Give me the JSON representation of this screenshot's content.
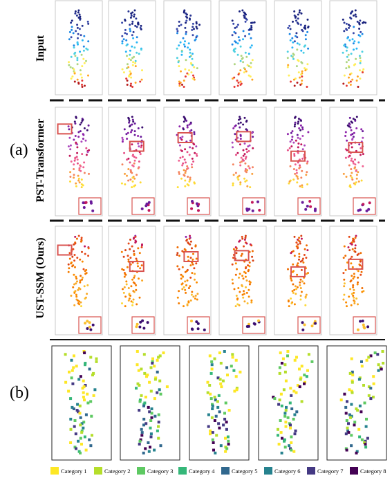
{
  "figure": {
    "labels": {
      "a": "(a)",
      "b": "(b)"
    },
    "row_titles": [
      "Input",
      "PST-Transformer",
      "UST-SSM (Ours)"
    ],
    "colors": {
      "panel_border": "#c8c8c8",
      "highlight": "#d9534f",
      "divider": "#111111"
    }
  },
  "legend": {
    "items": [
      {
        "label": "Category 1",
        "color": "#fde725"
      },
      {
        "label": "Category 2",
        "color": "#b5de2b"
      },
      {
        "label": "Category 3",
        "color": "#5ec962"
      },
      {
        "label": "Category 4",
        "color": "#35b779"
      },
      {
        "label": "Category 5",
        "color": "#31688e"
      },
      {
        "label": "Category 6",
        "color": "#26828e"
      },
      {
        "label": "Category 7",
        "color": "#443983"
      },
      {
        "label": "Category 8",
        "color": "#440154"
      }
    ]
  }
}
